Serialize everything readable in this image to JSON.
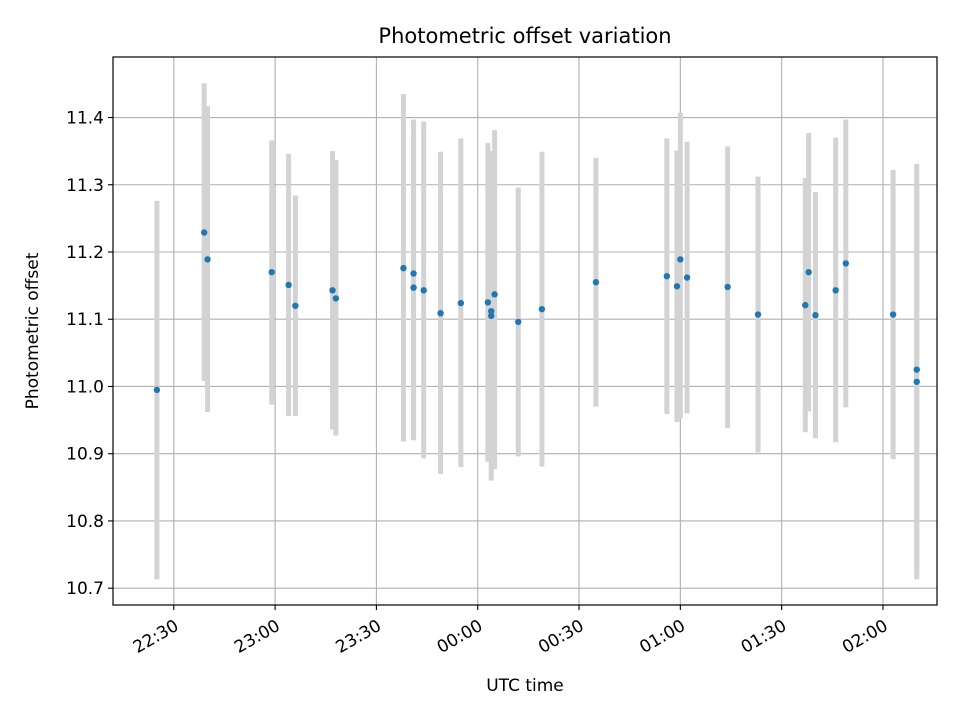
{
  "chart_data": {
    "type": "scatter",
    "title": "Photometric offset variation",
    "xlabel": "UTC time",
    "ylabel": "Photometric offset",
    "x_domain": [
      "22:12",
      "02:16"
    ],
    "ylim": [
      10.675,
      11.49
    ],
    "x_ticks": [
      "22:30",
      "23:00",
      "23:30",
      "00:00",
      "00:30",
      "01:00",
      "01:30",
      "02:00"
    ],
    "y_ticks": [
      "10.7",
      "10.8",
      "10.9",
      "11.0",
      "11.1",
      "11.2",
      "11.3",
      "11.4"
    ],
    "grid": true,
    "colors": {
      "point": "#1f77b4",
      "errorbar": "#d3d3d3",
      "grid": "#b0b0b0"
    },
    "points": [
      {
        "x": "22:25",
        "y": 10.995,
        "yerr_low": 10.713,
        "yerr_high": 11.276
      },
      {
        "x": "22:39",
        "y": 11.229,
        "yerr_low": 11.008,
        "yerr_high": 11.451
      },
      {
        "x": "22:40",
        "y": 11.189,
        "yerr_low": 10.962,
        "yerr_high": 11.417
      },
      {
        "x": "22:59",
        "y": 11.17,
        "yerr_low": 10.973,
        "yerr_high": 11.366
      },
      {
        "x": "23:04",
        "y": 11.151,
        "yerr_low": 10.956,
        "yerr_high": 11.346
      },
      {
        "x": "23:06",
        "y": 11.12,
        "yerr_low": 10.956,
        "yerr_high": 11.284
      },
      {
        "x": "23:17",
        "y": 11.143,
        "yerr_low": 10.936,
        "yerr_high": 11.35
      },
      {
        "x": "23:18",
        "y": 11.131,
        "yerr_low": 10.927,
        "yerr_high": 11.337
      },
      {
        "x": "23:38",
        "y": 11.176,
        "yerr_low": 10.918,
        "yerr_high": 11.435
      },
      {
        "x": "23:41",
        "y": 11.168,
        "yerr_low": 10.934,
        "yerr_high": 11.397
      },
      {
        "x": "23:41",
        "y": 11.147,
        "yerr_low": 10.92,
        "yerr_high": 11.374
      },
      {
        "x": "23:44",
        "y": 11.143,
        "yerr_low": 10.893,
        "yerr_high": 11.394
      },
      {
        "x": "23:49",
        "y": 11.109,
        "yerr_low": 10.87,
        "yerr_high": 11.349
      },
      {
        "x": "23:55",
        "y": 11.124,
        "yerr_low": 10.88,
        "yerr_high": 11.369
      },
      {
        "x": "00:03",
        "y": 11.125,
        "yerr_low": 10.888,
        "yerr_high": 11.362
      },
      {
        "x": "00:04",
        "y": 11.105,
        "yerr_low": 10.86,
        "yerr_high": 11.35
      },
      {
        "x": "00:04",
        "y": 11.112,
        "yerr_low": 10.892,
        "yerr_high": 11.332
      },
      {
        "x": "00:05",
        "y": 11.137,
        "yerr_low": 10.877,
        "yerr_high": 11.381
      },
      {
        "x": "00:12",
        "y": 11.096,
        "yerr_low": 10.896,
        "yerr_high": 11.296
      },
      {
        "x": "00:19",
        "y": 11.115,
        "yerr_low": 10.881,
        "yerr_high": 11.349
      },
      {
        "x": "00:35",
        "y": 11.155,
        "yerr_low": 10.97,
        "yerr_high": 11.34
      },
      {
        "x": "00:56",
        "y": 11.164,
        "yerr_low": 10.959,
        "yerr_high": 11.369
      },
      {
        "x": "00:59",
        "y": 11.149,
        "yerr_low": 10.947,
        "yerr_high": 11.351
      },
      {
        "x": "01:00",
        "y": 11.189,
        "yerr_low": 10.953,
        "yerr_high": 11.407
      },
      {
        "x": "01:02",
        "y": 11.162,
        "yerr_low": 10.96,
        "yerr_high": 11.364
      },
      {
        "x": "01:14",
        "y": 11.148,
        "yerr_low": 10.938,
        "yerr_high": 11.357
      },
      {
        "x": "01:23",
        "y": 11.107,
        "yerr_low": 10.902,
        "yerr_high": 11.312
      },
      {
        "x": "01:37",
        "y": 11.121,
        "yerr_low": 10.932,
        "yerr_high": 11.31
      },
      {
        "x": "01:38",
        "y": 11.17,
        "yerr_low": 10.963,
        "yerr_high": 11.377
      },
      {
        "x": "01:40",
        "y": 11.106,
        "yerr_low": 10.923,
        "yerr_high": 11.289
      },
      {
        "x": "01:46",
        "y": 11.143,
        "yerr_low": 10.917,
        "yerr_high": 11.37
      },
      {
        "x": "01:49",
        "y": 11.183,
        "yerr_low": 10.969,
        "yerr_high": 11.397
      },
      {
        "x": "02:03",
        "y": 11.107,
        "yerr_low": 10.892,
        "yerr_high": 11.322
      },
      {
        "x": "02:10",
        "y": 11.007,
        "yerr_low": 10.713,
        "yerr_high": 11.301
      },
      {
        "x": "02:10",
        "y": 11.025,
        "yerr_low": 10.722,
        "yerr_high": 11.331
      }
    ]
  }
}
